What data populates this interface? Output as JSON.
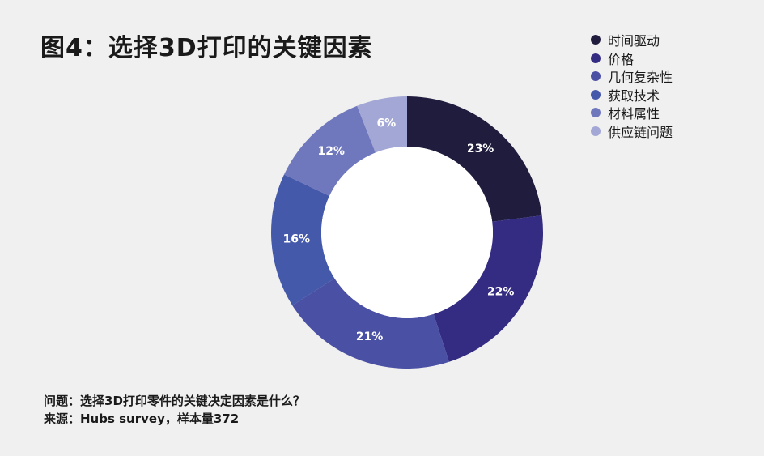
{
  "title": "图4：选择3D打印的关键因素",
  "footnote": {
    "question": "问题：选择3D打印零件的关键决定因素是什么？",
    "source": "来源：Hubs survey，样本量372"
  },
  "chart_data": {
    "type": "pie",
    "donut": true,
    "title": "图4：选择3D打印的关键因素",
    "legend_position": "top-right",
    "categories": [
      "时间驱动",
      "价格",
      "几何复杂性",
      "获取技术",
      "材料属性",
      "供应链问题"
    ],
    "values": [
      23,
      22,
      21,
      16,
      12,
      6
    ],
    "labels": [
      "23%",
      "22%",
      "21%",
      "16%",
      "12%",
      "6%"
    ],
    "colors": [
      "#201c3e",
      "#342c82",
      "#4a50a4",
      "#4559ab",
      "#6f77bd",
      "#a3a7d5"
    ]
  }
}
